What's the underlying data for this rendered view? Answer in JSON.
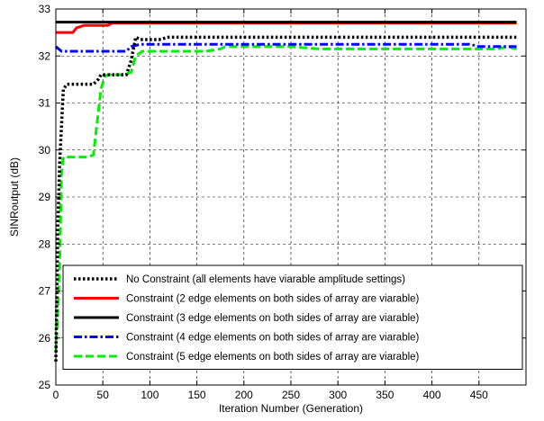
{
  "chart_data": {
    "type": "line",
    "title": "",
    "xlabel": "Iteration Number (Generation)",
    "ylabel": "SINRoutput (dB)",
    "xlim": [
      0,
      500
    ],
    "ylim": [
      25,
      33
    ],
    "xticks": [
      0,
      50,
      100,
      150,
      200,
      250,
      300,
      350,
      400,
      450
    ],
    "yticks": [
      25,
      26,
      27,
      28,
      29,
      30,
      31,
      32,
      33
    ],
    "grid": true,
    "legend_position": "bottom-right",
    "series": [
      {
        "name": "No Constraint (all elements have viarable amplitude settings)",
        "color": "#000000",
        "style": "dotted",
        "x": [
          0,
          2,
          4,
          6,
          8,
          12,
          25,
          40,
          45,
          48,
          52,
          58,
          65,
          75,
          80,
          85,
          90,
          95,
          100,
          110,
          120,
          130,
          140,
          160,
          180,
          220,
          280,
          350,
          420,
          470,
          490
        ],
        "y": [
          25.5,
          28.3,
          29.7,
          30.5,
          31.3,
          31.4,
          31.4,
          31.4,
          31.5,
          31.6,
          31.6,
          31.6,
          31.6,
          31.6,
          31.9,
          32.4,
          32.35,
          32.35,
          32.35,
          32.35,
          32.4,
          32.4,
          32.4,
          32.4,
          32.4,
          32.4,
          32.4,
          32.4,
          32.4,
          32.4,
          32.4
        ]
      },
      {
        "name": "Constraint (2 edge elements on both sides of array are viarable)",
        "color": "#ff0000",
        "style": "solid",
        "x": [
          0,
          18,
          22,
          30,
          40,
          55,
          60,
          100,
          200,
          300,
          400,
          490
        ],
        "y": [
          32.5,
          32.5,
          32.6,
          32.65,
          32.65,
          32.65,
          32.7,
          32.7,
          32.7,
          32.7,
          32.7,
          32.7
        ]
      },
      {
        "name": "Constraint (3 edge elements on both sides of array are viarable)",
        "color": "#000000",
        "style": "solid",
        "x": [
          0,
          100,
          200,
          300,
          400,
          490
        ],
        "y": [
          32.72,
          32.72,
          32.72,
          32.72,
          32.72,
          32.72
        ]
      },
      {
        "name": "Constraint (4 edge elements on both sides of array are viarable)",
        "color": "#0000ff",
        "style": "dashdot",
        "x": [
          0,
          6,
          12,
          30,
          60,
          75,
          80,
          90,
          120,
          200,
          300,
          400,
          440,
          450,
          470,
          490
        ],
        "y": [
          32.2,
          32.1,
          32.1,
          32.1,
          32.1,
          32.1,
          32.2,
          32.25,
          32.25,
          32.25,
          32.25,
          32.25,
          32.25,
          32.2,
          32.2,
          32.2
        ]
      },
      {
        "name": "Constraint (5 edge elements on both sides of array are viarable)",
        "color": "#00ee00",
        "style": "dashed",
        "x": [
          0,
          2,
          4,
          5,
          6,
          8,
          35,
          40,
          48,
          52,
          55,
          70,
          80,
          85,
          92,
          120,
          160,
          175,
          180,
          250,
          280,
          300,
          400,
          470,
          480,
          490
        ],
        "y": [
          25.7,
          26.5,
          27.5,
          28.5,
          29.5,
          29.85,
          29.85,
          29.9,
          31.3,
          31.55,
          31.6,
          31.6,
          31.65,
          32.0,
          32.1,
          32.1,
          32.1,
          32.15,
          32.2,
          32.2,
          32.15,
          32.15,
          32.15,
          32.15,
          32.2,
          32.15
        ]
      }
    ]
  }
}
